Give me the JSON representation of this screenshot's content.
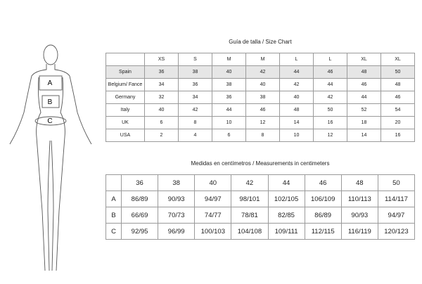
{
  "figure": {
    "labels": [
      "A",
      "B",
      "C"
    ]
  },
  "size_chart": {
    "title": "Guía de talla / Size Chart",
    "header": [
      "XS",
      "S",
      "M",
      "M",
      "L",
      "L",
      "XL",
      "XL"
    ],
    "rows": [
      [
        "Spain",
        36,
        38,
        40,
        42,
        44,
        46,
        48,
        50
      ],
      [
        "Belgium/ Fance",
        34,
        36,
        38,
        40,
        42,
        44,
        46,
        48
      ],
      [
        "Germany",
        32,
        34,
        36,
        38,
        40,
        42,
        44,
        46
      ],
      [
        "Italy",
        40,
        42,
        44,
        46,
        48,
        50,
        52,
        54
      ],
      [
        "UK",
        6,
        8,
        10,
        12,
        14,
        16,
        18,
        20
      ],
      [
        "USA",
        2,
        4,
        6,
        8,
        10,
        12,
        14,
        16
      ]
    ]
  },
  "measurements": {
    "title": "Medidas en centímetros / Measurements in centimeters",
    "header": [
      36,
      38,
      40,
      42,
      44,
      46,
      48,
      50
    ],
    "rows": [
      [
        "A",
        "86/89",
        "90/93",
        "94/97",
        "98/101",
        "102/105",
        "106/109",
        "110/113",
        "114/117"
      ],
      [
        "B",
        "66/69",
        "70/73",
        "74/77",
        "78/81",
        "82/85",
        "86/89",
        "90/93",
        "94/97"
      ],
      [
        "C",
        "92/95",
        "96/99",
        "100/103",
        "104/108",
        "109/111",
        "112/115",
        "116/119",
        "120/123"
      ]
    ]
  }
}
